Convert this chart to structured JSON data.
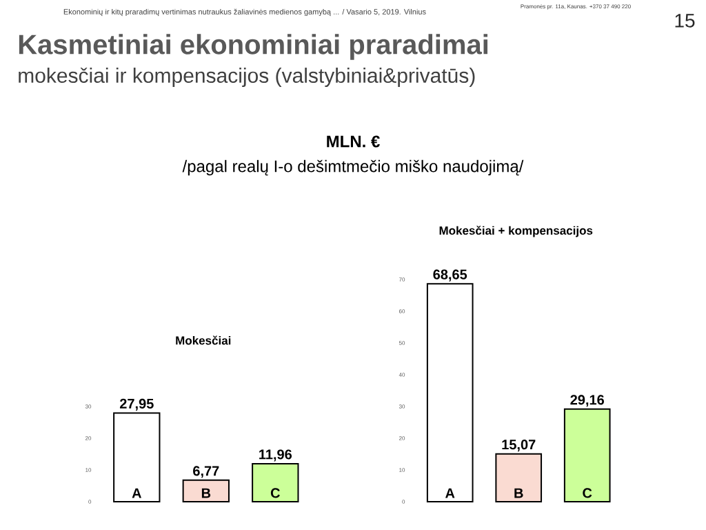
{
  "chart_data": [
    {
      "type": "bar",
      "title": "Mokesčiai",
      "categories": [
        "A",
        "B",
        "C"
      ],
      "values": [
        27.95,
        6.77,
        11.96
      ],
      "value_labels": [
        "27,95",
        "6,77",
        "11,96"
      ],
      "colors": [
        "#ffffff",
        "#fadbd2",
        "#ccff99"
      ],
      "ylim": [
        0,
        30
      ],
      "yticks": [
        0,
        10,
        20,
        30
      ],
      "annotations": [
        "Ekonominių ir kitų praradimų vertinimas nutraukus žaliavinės medienos gamybą ... / Vasario 5, 2019.  Vilnius",
        "Pramonės pr. 11a, Kaunas. +370 37 490 220",
        "15",
        "Kasmetiniai ekonominiai praradimai",
        "mokesčiai ir kompensacijos (valstybiniai&privatūs)",
        "MLN. €",
        "/pagal realų I-o dešimtmečio miško naudojimą/"
      ]
    },
    {
      "type": "bar",
      "title": "Mokesčiai + kompensacijos",
      "categories": [
        "A",
        "B",
        "C"
      ],
      "values": [
        68.65,
        15.07,
        29.16
      ],
      "value_labels": [
        "68,65",
        "15,07",
        "29,16"
      ],
      "colors": [
        "#ffffff",
        "#fadbd2",
        "#ccff99"
      ],
      "ylim": [
        0,
        70
      ],
      "yticks": [
        0,
        10,
        20,
        30,
        40,
        50,
        60,
        70
      ]
    }
  ]
}
